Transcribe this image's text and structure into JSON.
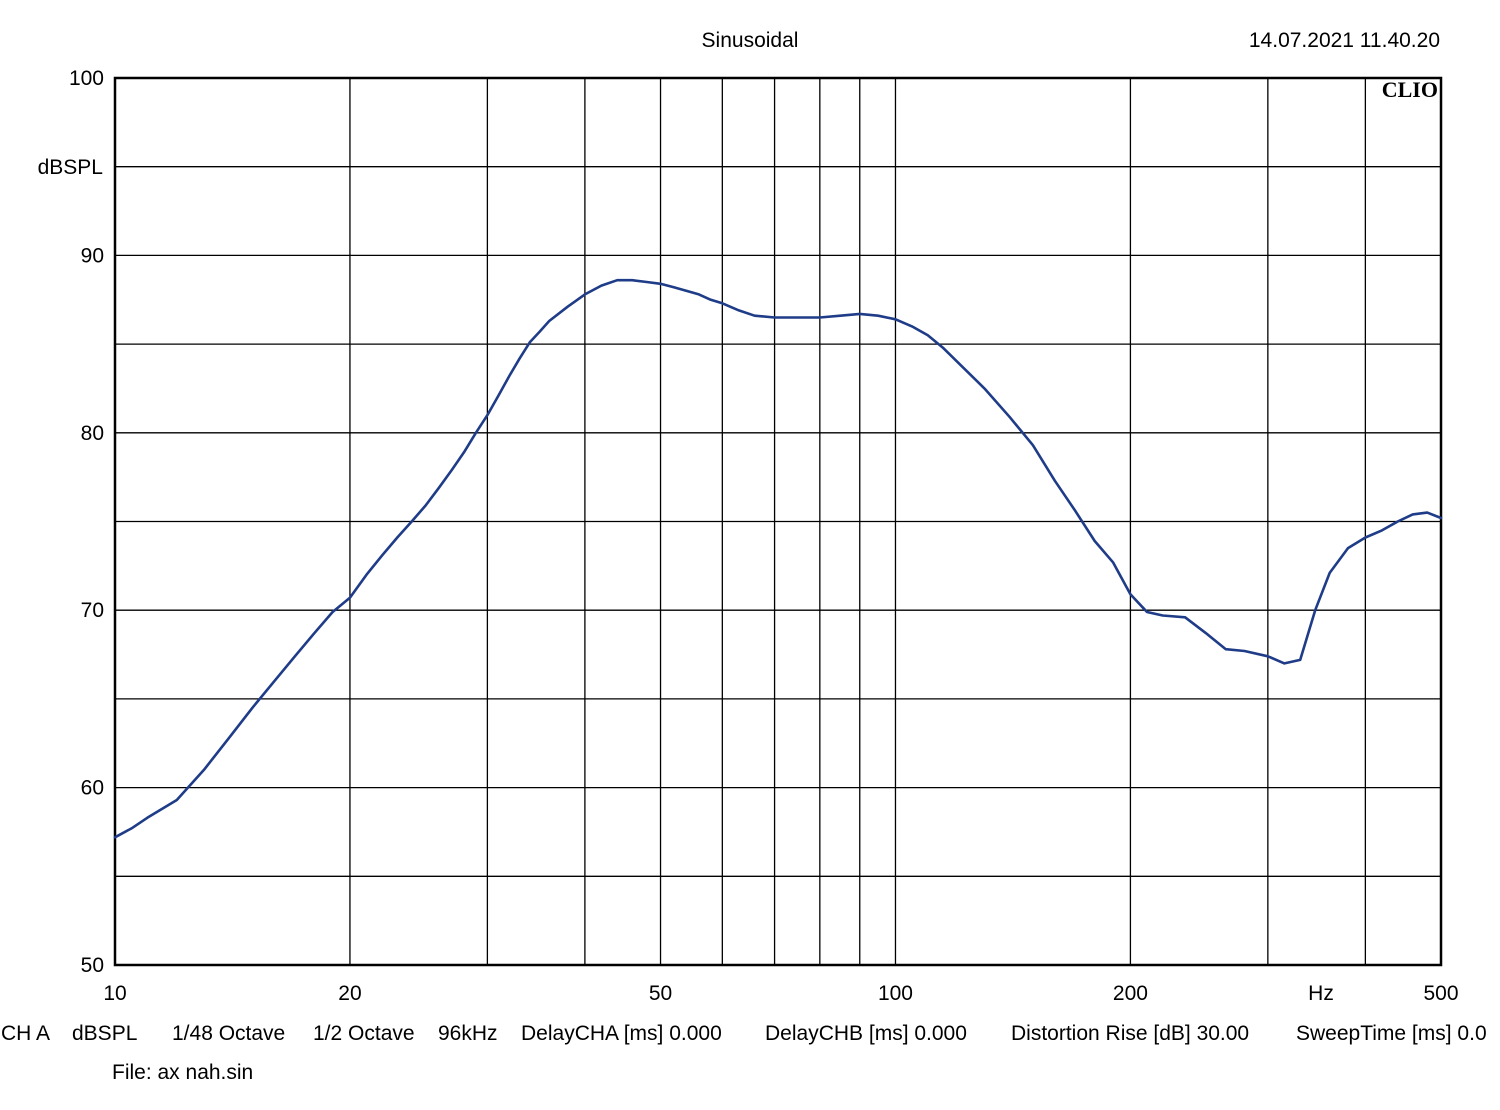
{
  "header": {
    "mode": "Sinusoidal",
    "datetime": "14.07.2021 11.40.20",
    "brand": "CLIO"
  },
  "chart_data": {
    "type": "line",
    "x_scale": "log",
    "xlim": [
      10,
      500
    ],
    "ylim": [
      50,
      100
    ],
    "ylabel": "dBSPL",
    "xlabel": "Hz",
    "grid": true,
    "x_major_ticks": [
      10,
      20,
      50,
      100,
      200,
      500
    ],
    "x_minor_ticks": [
      30,
      40,
      60,
      70,
      80,
      90,
      300,
      400
    ],
    "y_ticks": [
      50,
      60,
      70,
      80,
      90,
      100
    ],
    "y_minor_ticks": [
      55,
      65,
      75,
      85,
      95
    ],
    "series": [
      {
        "color": "#1f3c88",
        "x": [
          10,
          10.5,
          11,
          12,
          13,
          14,
          15,
          16,
          17,
          18,
          19,
          20,
          21,
          22,
          23,
          24,
          25,
          26,
          27,
          28,
          29,
          30,
          31,
          32,
          33,
          34,
          35,
          36,
          38,
          40,
          42,
          44,
          46,
          48,
          50,
          52,
          54,
          56,
          58,
          60,
          63,
          66,
          70,
          75,
          80,
          85,
          90,
          95,
          100,
          105,
          110,
          115,
          120,
          130,
          140,
          150,
          160,
          170,
          180,
          190,
          200,
          210,
          220,
          235,
          250,
          265,
          280,
          300,
          315,
          330,
          345,
          360,
          380,
          400,
          420,
          440,
          460,
          480,
          500
        ],
        "y": [
          57.2,
          57.7,
          58.3,
          59.3,
          61.0,
          62.8,
          64.5,
          66.0,
          67.4,
          68.7,
          69.9,
          70.7,
          72.0,
          73.1,
          74.1,
          75.0,
          75.9,
          76.9,
          77.9,
          78.9,
          80.0,
          81.0,
          82.1,
          83.2,
          84.2,
          85.1,
          85.7,
          86.3,
          87.1,
          87.8,
          88.3,
          88.6,
          88.6,
          88.5,
          88.4,
          88.2,
          88.0,
          87.8,
          87.5,
          87.3,
          86.9,
          86.6,
          86.5,
          86.5,
          86.5,
          86.6,
          86.7,
          86.6,
          86.4,
          86.0,
          85.5,
          84.8,
          84.0,
          82.5,
          80.9,
          79.3,
          77.3,
          75.6,
          73.9,
          72.7,
          70.9,
          69.9,
          69.7,
          69.6,
          68.7,
          67.8,
          67.7,
          67.4,
          67.0,
          67.2,
          70.0,
          72.1,
          73.5,
          74.1,
          74.5,
          75.0,
          75.4,
          75.5,
          75.2
        ]
      }
    ]
  },
  "footer": {
    "params": [
      "CH A",
      "dBSPL",
      "1/48 Octave",
      "1/2 Octave",
      "96kHz",
      "DelayCHA [ms] 0.000",
      "DelayCHB [ms] 0.000",
      "Distortion Rise [dB] 30.00",
      "SweepTime [ms] 0.0"
    ],
    "file": "File: ax nah.sin"
  }
}
